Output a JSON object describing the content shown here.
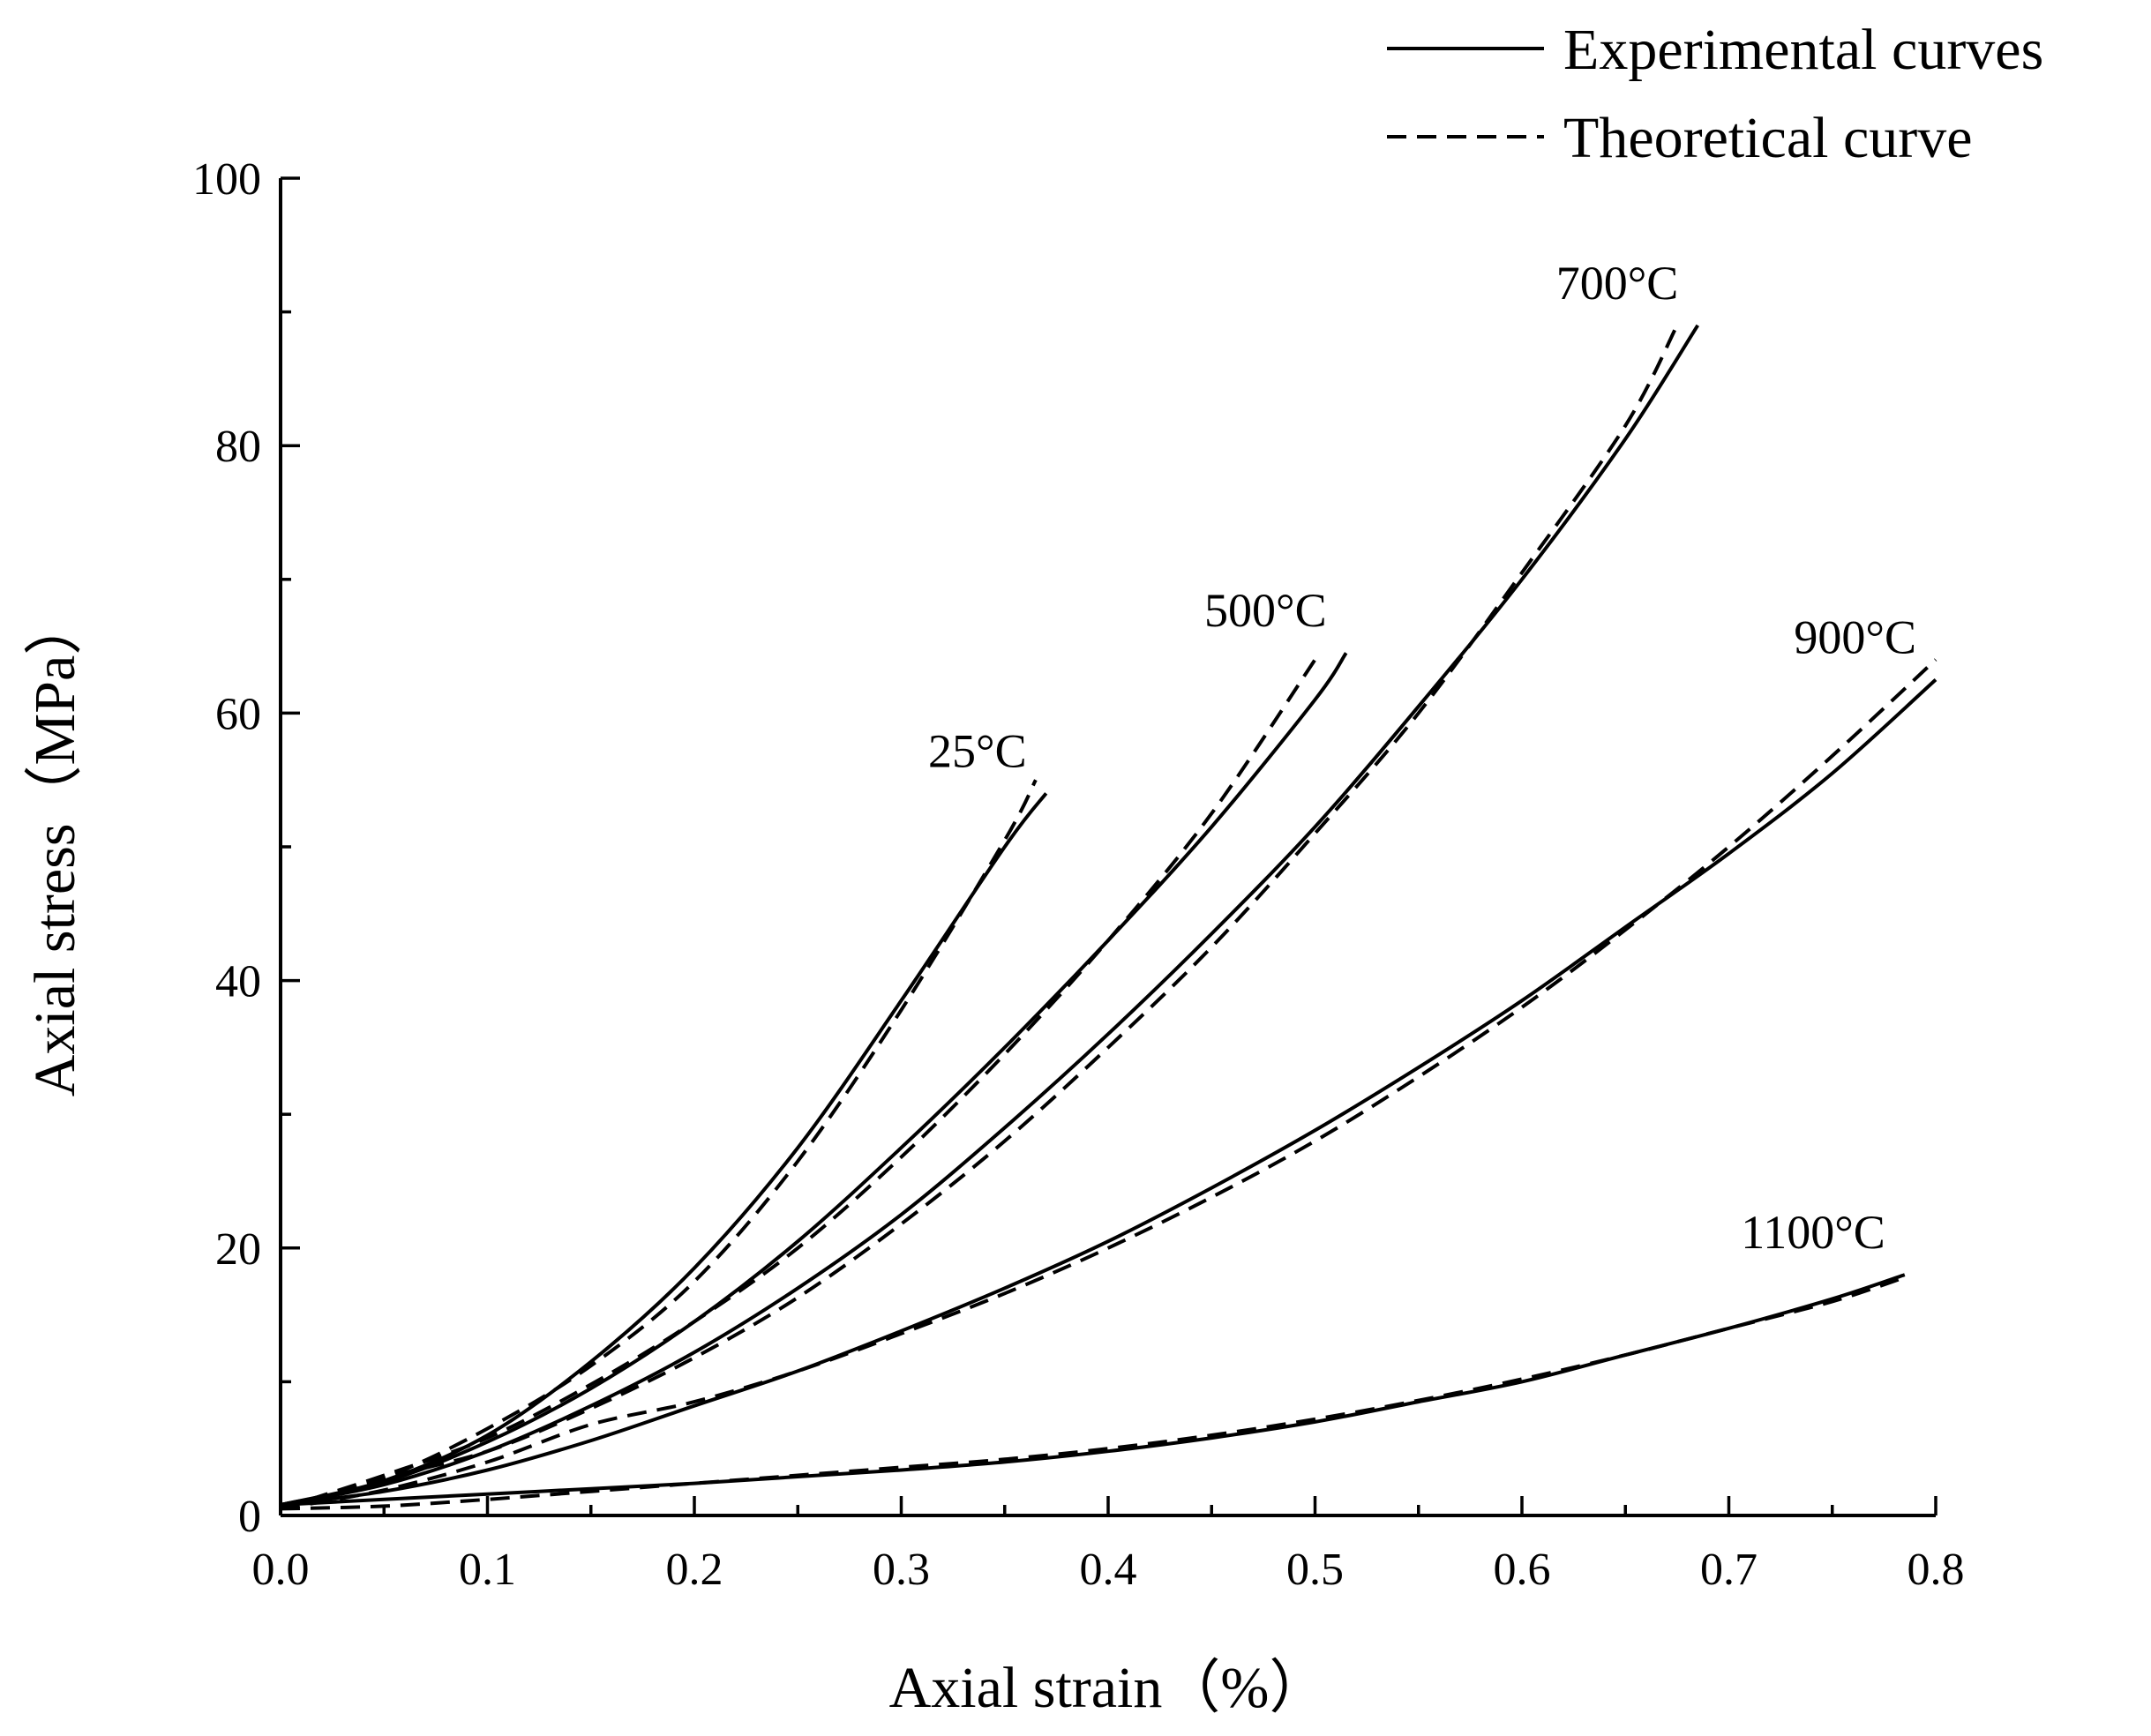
{
  "chart_data": {
    "type": "line",
    "title": "",
    "xlabel": "Axial strain（%）",
    "ylabel": "Axial stress（MPa）",
    "xlim": [
      0.0,
      0.8
    ],
    "ylim": [
      0,
      100
    ],
    "xticks": [
      "0.0",
      "0.1",
      "0.2",
      "0.3",
      "0.4",
      "0.5",
      "0.6",
      "0.7",
      "0.8"
    ],
    "yticks": [
      "0",
      "20",
      "40",
      "60",
      "80",
      "100"
    ],
    "legend": {
      "placement": "top-right",
      "entries": [
        {
          "label": "Experimental curves",
          "style": "solid"
        },
        {
          "label": "Theoretical curve",
          "style": "dashed"
        }
      ]
    },
    "series": [
      {
        "name": "25°C",
        "label": "25°C",
        "experimental": {
          "x": [
            0.0,
            0.05,
            0.1,
            0.15,
            0.2,
            0.25,
            0.3,
            0.35,
            0.37
          ],
          "y": [
            0.8,
            2.6,
            6.0,
            11.5,
            18.5,
            27.5,
            38.5,
            50.0,
            54.0
          ]
        },
        "theoretical": {
          "x": [
            0.0,
            0.05,
            0.1,
            0.15,
            0.2,
            0.25,
            0.3,
            0.35,
            0.365
          ],
          "y": [
            0.5,
            2.8,
            6.5,
            11.2,
            17.5,
            26.5,
            37.8,
            50.5,
            55.0
          ]
        }
      },
      {
        "name": "500°C",
        "label": "500°C",
        "experimental": {
          "x": [
            0.0,
            0.05,
            0.1,
            0.15,
            0.2,
            0.25,
            0.3,
            0.35,
            0.4,
            0.45,
            0.5,
            0.515
          ],
          "y": [
            0.8,
            2.5,
            5.5,
            9.5,
            14.5,
            20.5,
            27.5,
            35.0,
            43.0,
            51.5,
            61.0,
            64.5
          ]
        },
        "theoretical": {
          "x": [
            0.0,
            0.05,
            0.1,
            0.15,
            0.2,
            0.25,
            0.3,
            0.35,
            0.4,
            0.45,
            0.5
          ],
          "y": [
            0.5,
            3.0,
            5.8,
            9.8,
            14.5,
            20.0,
            26.8,
            34.5,
            43.0,
            52.5,
            64.0
          ]
        }
      },
      {
        "name": "700°C",
        "label": "700°C",
        "experimental": {
          "x": [
            0.0,
            0.05,
            0.1,
            0.15,
            0.2,
            0.25,
            0.3,
            0.35,
            0.4,
            0.45,
            0.5,
            0.55,
            0.6,
            0.65,
            0.685
          ],
          "y": [
            0.8,
            2.3,
            4.8,
            8.2,
            12.2,
            17.0,
            22.5,
            29.0,
            36.0,
            43.5,
            51.5,
            60.5,
            70.0,
            80.5,
            89.0
          ]
        },
        "theoretical": {
          "x": [
            0.0,
            0.05,
            0.1,
            0.15,
            0.2,
            0.25,
            0.3,
            0.35,
            0.4,
            0.45,
            0.5,
            0.55,
            0.6,
            0.65,
            0.675
          ],
          "y": [
            0.5,
            2.8,
            4.8,
            8.0,
            11.8,
            16.3,
            21.8,
            28.0,
            35.0,
            42.5,
            51.0,
            60.0,
            70.5,
            81.5,
            89.0
          ]
        }
      },
      {
        "name": "900°C",
        "label": "900°C",
        "experimental": {
          "x": [
            0.0,
            0.05,
            0.1,
            0.15,
            0.2,
            0.25,
            0.3,
            0.35,
            0.4,
            0.45,
            0.5,
            0.55,
            0.6,
            0.65,
            0.7,
            0.75,
            0.8
          ],
          "y": [
            0.8,
            1.8,
            3.4,
            5.6,
            8.2,
            10.8,
            13.8,
            17.0,
            20.5,
            24.5,
            28.8,
            33.5,
            38.5,
            44.0,
            49.5,
            55.5,
            62.5
          ]
        },
        "theoretical": {
          "x": [
            0.0,
            0.05,
            0.1,
            0.15,
            0.2,
            0.25,
            0.3,
            0.35,
            0.4,
            0.45,
            0.5,
            0.55,
            0.6,
            0.65,
            0.7,
            0.75,
            0.8
          ],
          "y": [
            0.5,
            1.9,
            4.0,
            6.8,
            8.5,
            10.8,
            13.6,
            16.6,
            20.0,
            23.8,
            28.0,
            32.8,
            38.0,
            43.8,
            50.0,
            56.8,
            64.0
          ]
        }
      },
      {
        "name": "1100°C",
        "label": "1100°C",
        "experimental": {
          "x": [
            0.0,
            0.05,
            0.1,
            0.15,
            0.2,
            0.25,
            0.3,
            0.35,
            0.4,
            0.45,
            0.5,
            0.55,
            0.6,
            0.65,
            0.7,
            0.75,
            0.785
          ],
          "y": [
            0.8,
            1.2,
            1.6,
            2.0,
            2.4,
            2.9,
            3.4,
            4.0,
            4.8,
            5.8,
            7.0,
            8.5,
            10.0,
            12.0,
            14.0,
            16.2,
            18.0
          ]
        },
        "theoretical": {
          "x": [
            0.0,
            0.05,
            0.1,
            0.15,
            0.2,
            0.25,
            0.3,
            0.35,
            0.4,
            0.45,
            0.5,
            0.55,
            0.6,
            0.65,
            0.7,
            0.75,
            0.785
          ],
          "y": [
            0.5,
            0.7,
            1.2,
            1.8,
            2.4,
            3.0,
            3.6,
            4.2,
            5.0,
            6.0,
            7.2,
            8.6,
            10.2,
            12.0,
            14.0,
            16.0,
            17.8
          ]
        }
      }
    ]
  }
}
